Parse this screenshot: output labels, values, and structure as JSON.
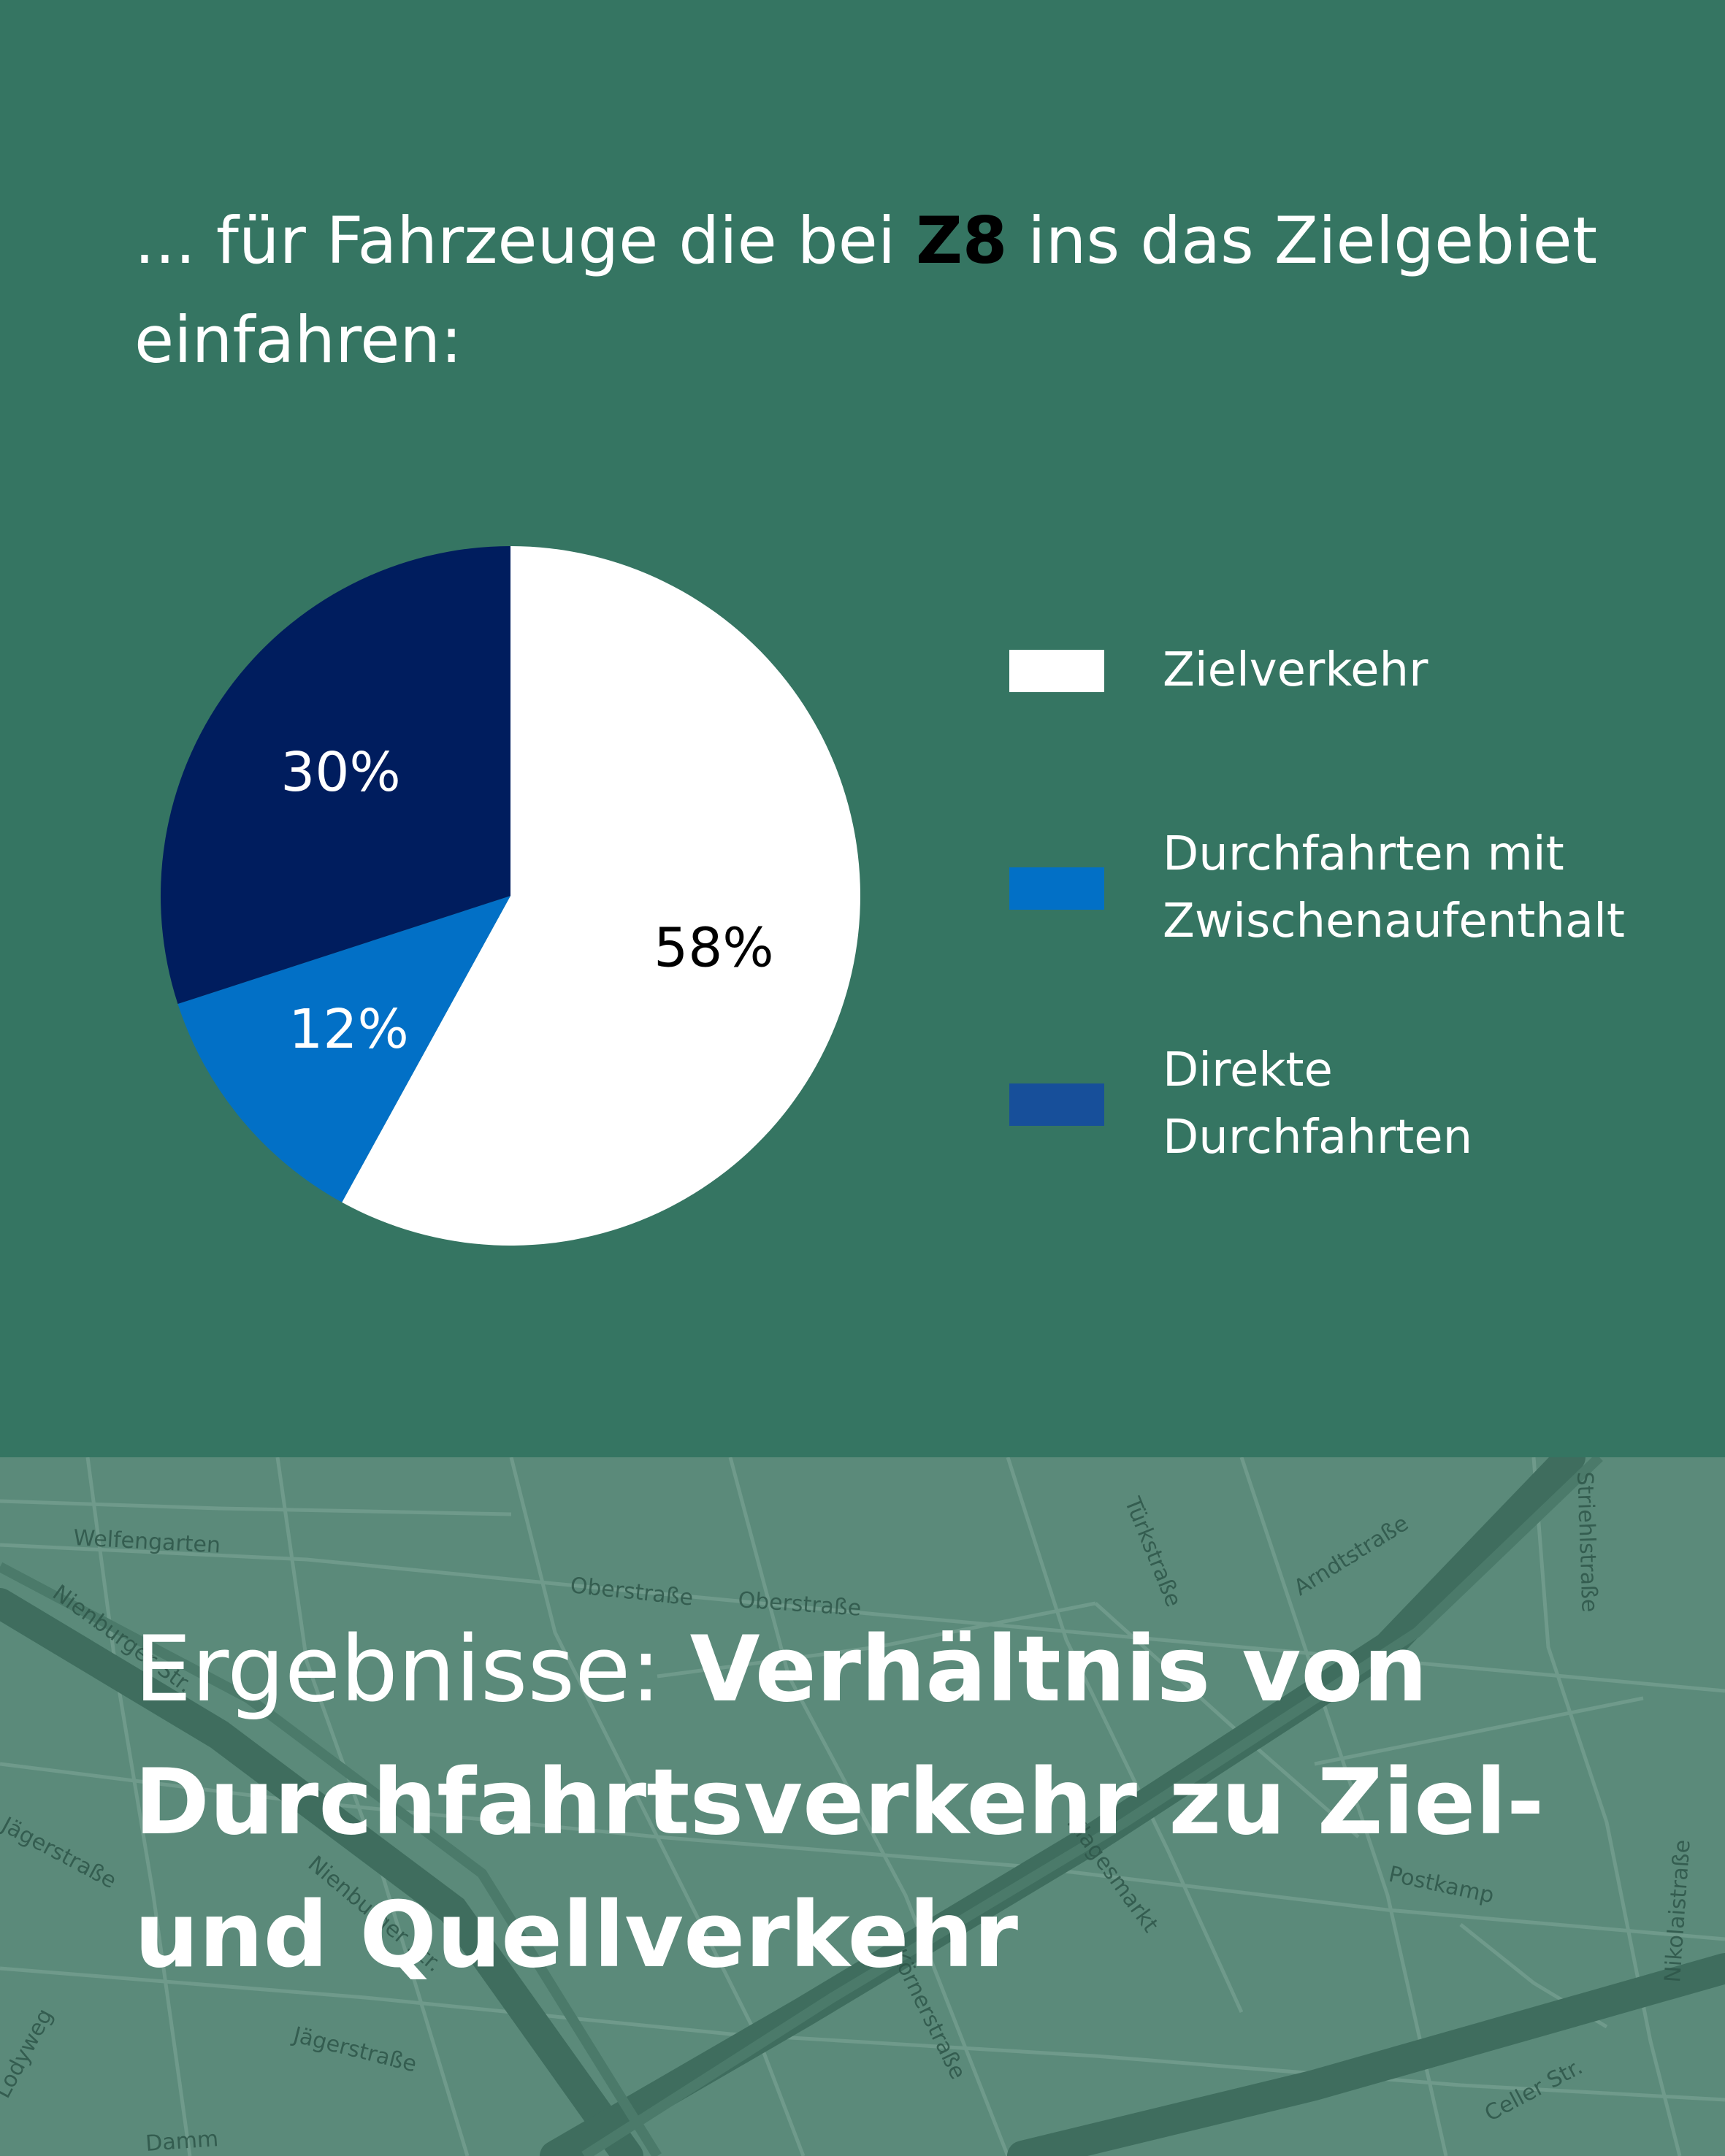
{
  "intro": {
    "prefix": "... für Fahrzeuge die bei ",
    "highlight": "Z8",
    "suffix": " ins das Zielgebiet einfahren:"
  },
  "chart_data": {
    "type": "pie",
    "slices": [
      {
        "label": "Zielverkehr",
        "value": 58,
        "value_label": "58%",
        "color": "#ffffff",
        "label_color": "#000000"
      },
      {
        "label": "Durchfahrten mit Zwischenaufenthalt",
        "value": 12,
        "value_label": "12%",
        "color": "#0270c6",
        "label_color": "#ffffff"
      },
      {
        "label": "Direkte Durchfahrten",
        "value": 30,
        "value_label": "30%",
        "color": "#001d5e",
        "label_color": "#ffffff"
      }
    ],
    "legend": [
      {
        "label_line1": "Zielverkehr",
        "label_line2": "",
        "color": "#ffffff"
      },
      {
        "label_line1": "Durchfahrten mit",
        "label_line2": "Zwischenaufenthalt",
        "color": "#0270c6"
      },
      {
        "label_line1": "Direkte",
        "label_line2": "Durchfahrten",
        "color": "#174f9a"
      }
    ],
    "legend_position": "right"
  },
  "headline": {
    "light": "Ergebnisse: ",
    "bold": "Verhältnis von Durchfahrtsverkehr zu Ziel- und Quellverkehr"
  },
  "map": {
    "street_labels": [
      "Welfengarten",
      "Oberstraße",
      "Oberstraße",
      "Türkstraße",
      "Arndtstraße",
      "Striehlstraße",
      "Nienburger Str.",
      "Nienburger Str.",
      "Jägerstraße",
      "Jägerstraße",
      "Postkamp",
      "Nikolaistraße",
      "Celler Str.",
      "Körnerstraße",
      "Klagesmarkt",
      "Lodyweg",
      "Damm"
    ],
    "colors": {
      "background": "#5b8a7a",
      "road": "#6c9888",
      "major_road": "#3d6b5c",
      "label": "#2e5649"
    }
  }
}
